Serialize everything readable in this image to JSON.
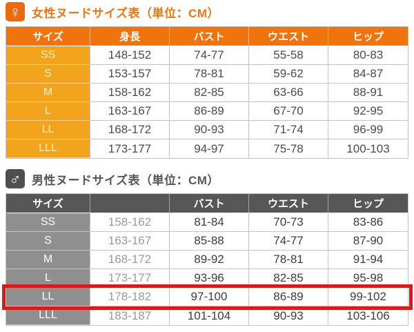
{
  "icons": {
    "female": "♀",
    "male": "♂"
  },
  "female_table": {
    "title": "女性ヌードサイズ表（単位：CM）",
    "headers": [
      "サイズ",
      "身長",
      "バスト",
      "ウエスト",
      "ヒップ"
    ],
    "rows": [
      [
        "SS",
        "148-152",
        "74-77",
        "55-58",
        "80-83"
      ],
      [
        "S",
        "153-157",
        "78-81",
        "59-62",
        "84-87"
      ],
      [
        "M",
        "158-162",
        "82-85",
        "63-66",
        "88-91"
      ],
      [
        "L",
        "163-167",
        "86-89",
        "67-70",
        "92-95"
      ],
      [
        "LL",
        "168-172",
        "90-93",
        "71-74",
        "96-99"
      ],
      [
        "LLL",
        "173-177",
        "94-97",
        "75-78",
        "100-103"
      ]
    ],
    "colors": {
      "header_bg": "#f0740e",
      "size_col_bg": "#f2a41f",
      "size_col_text": "#fcf0c0",
      "title_text": "#ea7513"
    }
  },
  "male_table": {
    "title": "男性ヌードサイズ表（単位：CM）",
    "headers": [
      "サイズ",
      "",
      "バスト",
      "ウエスト",
      "ヒップ"
    ],
    "rows": [
      [
        "SS",
        "158-162",
        "81-84",
        "70-73",
        "83-86"
      ],
      [
        "S",
        "163-167",
        "85-88",
        "74-77",
        "87-90"
      ],
      [
        "M",
        "168-172",
        "89-92",
        "78-81",
        "91-94"
      ],
      [
        "L",
        "173-177",
        "93-96",
        "82-85",
        "95-98"
      ],
      [
        "LL",
        "178-182",
        "97-100",
        "86-89",
        "99-102"
      ],
      [
        "LLL",
        "183-187",
        "101-104",
        "90-93",
        "103-106"
      ]
    ],
    "highlighted_size": "LL",
    "colors": {
      "header_bg": "#575757",
      "size_col_bg": "#8f8f8f",
      "title_text": "#555555",
      "height_text": "#9a9a9a",
      "highlight_border": "#da1a1a"
    }
  }
}
